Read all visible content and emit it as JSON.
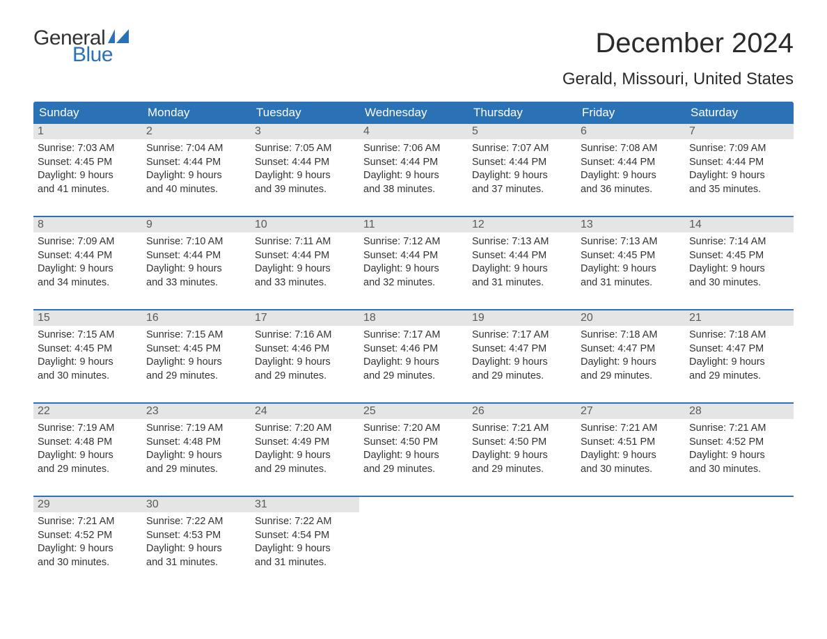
{
  "logo": {
    "text_top": "General",
    "text_bottom": "Blue",
    "flag_color": "#2a72b5"
  },
  "header": {
    "title": "December 2024",
    "subtitle": "Gerald, Missouri, United States",
    "title_fontsize": 40,
    "subtitle_fontsize": 24
  },
  "colors": {
    "header_bg": "#2a72b5",
    "header_text": "#ffffff",
    "daynum_bg": "#e5e5e5",
    "daynum_text": "#5a5a5a",
    "body_text": "#333333",
    "week_border": "#2a72b5",
    "page_bg": "#ffffff"
  },
  "typography": {
    "font_family": "Arial, Helvetica, sans-serif",
    "dayheader_fontsize": 17,
    "daynum_fontsize": 16,
    "body_fontsize": 14.5
  },
  "calendar": {
    "type": "table",
    "day_labels": [
      "Sunday",
      "Monday",
      "Tuesday",
      "Wednesday",
      "Thursday",
      "Friday",
      "Saturday"
    ],
    "weeks": [
      [
        {
          "n": "1",
          "sunrise": "Sunrise: 7:03 AM",
          "sunset": "Sunset: 4:45 PM",
          "day1": "Daylight: 9 hours",
          "day2": "and 41 minutes."
        },
        {
          "n": "2",
          "sunrise": "Sunrise: 7:04 AM",
          "sunset": "Sunset: 4:44 PM",
          "day1": "Daylight: 9 hours",
          "day2": "and 40 minutes."
        },
        {
          "n": "3",
          "sunrise": "Sunrise: 7:05 AM",
          "sunset": "Sunset: 4:44 PM",
          "day1": "Daylight: 9 hours",
          "day2": "and 39 minutes."
        },
        {
          "n": "4",
          "sunrise": "Sunrise: 7:06 AM",
          "sunset": "Sunset: 4:44 PM",
          "day1": "Daylight: 9 hours",
          "day2": "and 38 minutes."
        },
        {
          "n": "5",
          "sunrise": "Sunrise: 7:07 AM",
          "sunset": "Sunset: 4:44 PM",
          "day1": "Daylight: 9 hours",
          "day2": "and 37 minutes."
        },
        {
          "n": "6",
          "sunrise": "Sunrise: 7:08 AM",
          "sunset": "Sunset: 4:44 PM",
          "day1": "Daylight: 9 hours",
          "day2": "and 36 minutes."
        },
        {
          "n": "7",
          "sunrise": "Sunrise: 7:09 AM",
          "sunset": "Sunset: 4:44 PM",
          "day1": "Daylight: 9 hours",
          "day2": "and 35 minutes."
        }
      ],
      [
        {
          "n": "8",
          "sunrise": "Sunrise: 7:09 AM",
          "sunset": "Sunset: 4:44 PM",
          "day1": "Daylight: 9 hours",
          "day2": "and 34 minutes."
        },
        {
          "n": "9",
          "sunrise": "Sunrise: 7:10 AM",
          "sunset": "Sunset: 4:44 PM",
          "day1": "Daylight: 9 hours",
          "day2": "and 33 minutes."
        },
        {
          "n": "10",
          "sunrise": "Sunrise: 7:11 AM",
          "sunset": "Sunset: 4:44 PM",
          "day1": "Daylight: 9 hours",
          "day2": "and 33 minutes."
        },
        {
          "n": "11",
          "sunrise": "Sunrise: 7:12 AM",
          "sunset": "Sunset: 4:44 PM",
          "day1": "Daylight: 9 hours",
          "day2": "and 32 minutes."
        },
        {
          "n": "12",
          "sunrise": "Sunrise: 7:13 AM",
          "sunset": "Sunset: 4:44 PM",
          "day1": "Daylight: 9 hours",
          "day2": "and 31 minutes."
        },
        {
          "n": "13",
          "sunrise": "Sunrise: 7:13 AM",
          "sunset": "Sunset: 4:45 PM",
          "day1": "Daylight: 9 hours",
          "day2": "and 31 minutes."
        },
        {
          "n": "14",
          "sunrise": "Sunrise: 7:14 AM",
          "sunset": "Sunset: 4:45 PM",
          "day1": "Daylight: 9 hours",
          "day2": "and 30 minutes."
        }
      ],
      [
        {
          "n": "15",
          "sunrise": "Sunrise: 7:15 AM",
          "sunset": "Sunset: 4:45 PM",
          "day1": "Daylight: 9 hours",
          "day2": "and 30 minutes."
        },
        {
          "n": "16",
          "sunrise": "Sunrise: 7:15 AM",
          "sunset": "Sunset: 4:45 PM",
          "day1": "Daylight: 9 hours",
          "day2": "and 29 minutes."
        },
        {
          "n": "17",
          "sunrise": "Sunrise: 7:16 AM",
          "sunset": "Sunset: 4:46 PM",
          "day1": "Daylight: 9 hours",
          "day2": "and 29 minutes."
        },
        {
          "n": "18",
          "sunrise": "Sunrise: 7:17 AM",
          "sunset": "Sunset: 4:46 PM",
          "day1": "Daylight: 9 hours",
          "day2": "and 29 minutes."
        },
        {
          "n": "19",
          "sunrise": "Sunrise: 7:17 AM",
          "sunset": "Sunset: 4:47 PM",
          "day1": "Daylight: 9 hours",
          "day2": "and 29 minutes."
        },
        {
          "n": "20",
          "sunrise": "Sunrise: 7:18 AM",
          "sunset": "Sunset: 4:47 PM",
          "day1": "Daylight: 9 hours",
          "day2": "and 29 minutes."
        },
        {
          "n": "21",
          "sunrise": "Sunrise: 7:18 AM",
          "sunset": "Sunset: 4:47 PM",
          "day1": "Daylight: 9 hours",
          "day2": "and 29 minutes."
        }
      ],
      [
        {
          "n": "22",
          "sunrise": "Sunrise: 7:19 AM",
          "sunset": "Sunset: 4:48 PM",
          "day1": "Daylight: 9 hours",
          "day2": "and 29 minutes."
        },
        {
          "n": "23",
          "sunrise": "Sunrise: 7:19 AM",
          "sunset": "Sunset: 4:48 PM",
          "day1": "Daylight: 9 hours",
          "day2": "and 29 minutes."
        },
        {
          "n": "24",
          "sunrise": "Sunrise: 7:20 AM",
          "sunset": "Sunset: 4:49 PM",
          "day1": "Daylight: 9 hours",
          "day2": "and 29 minutes."
        },
        {
          "n": "25",
          "sunrise": "Sunrise: 7:20 AM",
          "sunset": "Sunset: 4:50 PM",
          "day1": "Daylight: 9 hours",
          "day2": "and 29 minutes."
        },
        {
          "n": "26",
          "sunrise": "Sunrise: 7:21 AM",
          "sunset": "Sunset: 4:50 PM",
          "day1": "Daylight: 9 hours",
          "day2": "and 29 minutes."
        },
        {
          "n": "27",
          "sunrise": "Sunrise: 7:21 AM",
          "sunset": "Sunset: 4:51 PM",
          "day1": "Daylight: 9 hours",
          "day2": "and 30 minutes."
        },
        {
          "n": "28",
          "sunrise": "Sunrise: 7:21 AM",
          "sunset": "Sunset: 4:52 PM",
          "day1": "Daylight: 9 hours",
          "day2": "and 30 minutes."
        }
      ],
      [
        {
          "n": "29",
          "sunrise": "Sunrise: 7:21 AM",
          "sunset": "Sunset: 4:52 PM",
          "day1": "Daylight: 9 hours",
          "day2": "and 30 minutes."
        },
        {
          "n": "30",
          "sunrise": "Sunrise: 7:22 AM",
          "sunset": "Sunset: 4:53 PM",
          "day1": "Daylight: 9 hours",
          "day2": "and 31 minutes."
        },
        {
          "n": "31",
          "sunrise": "Sunrise: 7:22 AM",
          "sunset": "Sunset: 4:54 PM",
          "day1": "Daylight: 9 hours",
          "day2": "and 31 minutes."
        },
        {
          "empty": true
        },
        {
          "empty": true
        },
        {
          "empty": true
        },
        {
          "empty": true
        }
      ]
    ]
  }
}
